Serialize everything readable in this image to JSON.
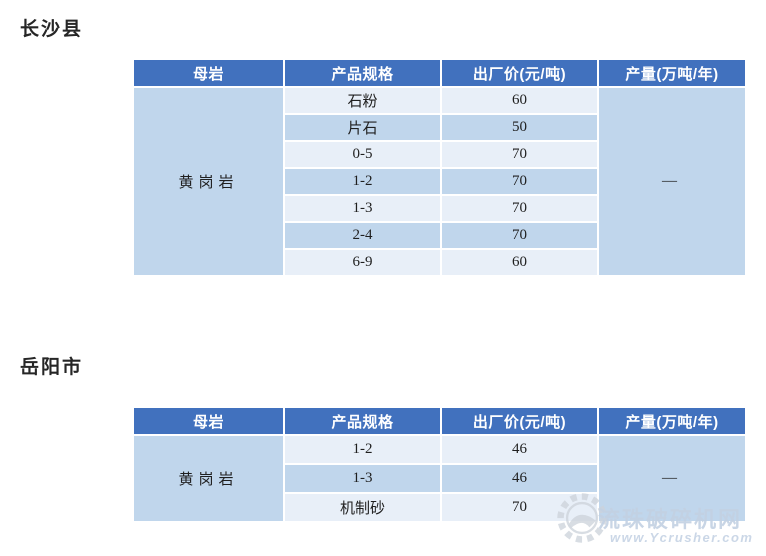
{
  "colors": {
    "header_bg": "#4171be",
    "row_light": "#e8eff8",
    "row_dark": "#c0d6ec",
    "header_text": "#ffffff",
    "body_text": "#1f1f1f",
    "title_text": "#262626",
    "watermark_text": "#c3d1e3",
    "watermark_icon": "#ccd3da"
  },
  "sections": [
    {
      "title": "长沙县",
      "table": {
        "headers": [
          "母岩",
          "产品规格",
          "出厂价(元/吨)",
          "产量(万吨/年)"
        ],
        "rock": "黄岗岩",
        "output": "—",
        "rows": [
          {
            "spec": "石粉",
            "price": "60"
          },
          {
            "spec": "片石",
            "price": "50"
          },
          {
            "spec": "0-5",
            "price": "70"
          },
          {
            "spec": "1-2",
            "price": "70"
          },
          {
            "spec": "1-3",
            "price": "70"
          },
          {
            "spec": "2-4",
            "price": "70"
          },
          {
            "spec": "6-9",
            "price": "60"
          }
        ]
      }
    },
    {
      "title": "岳阳市",
      "table": {
        "headers": [
          "母岩",
          "产品规格",
          "出厂价(元/吨)",
          "产量(万吨/年)"
        ],
        "rock": "黄岗岩",
        "output": "—",
        "rows": [
          {
            "spec": "1-2",
            "price": "46"
          },
          {
            "spec": "1-3",
            "price": "46"
          },
          {
            "spec": "机制砂",
            "price": "70"
          }
        ]
      }
    }
  ],
  "watermark": {
    "icon": "gear-icon",
    "site_name": "流珠破碎机网",
    "url": "www.Ycrusher.com"
  }
}
